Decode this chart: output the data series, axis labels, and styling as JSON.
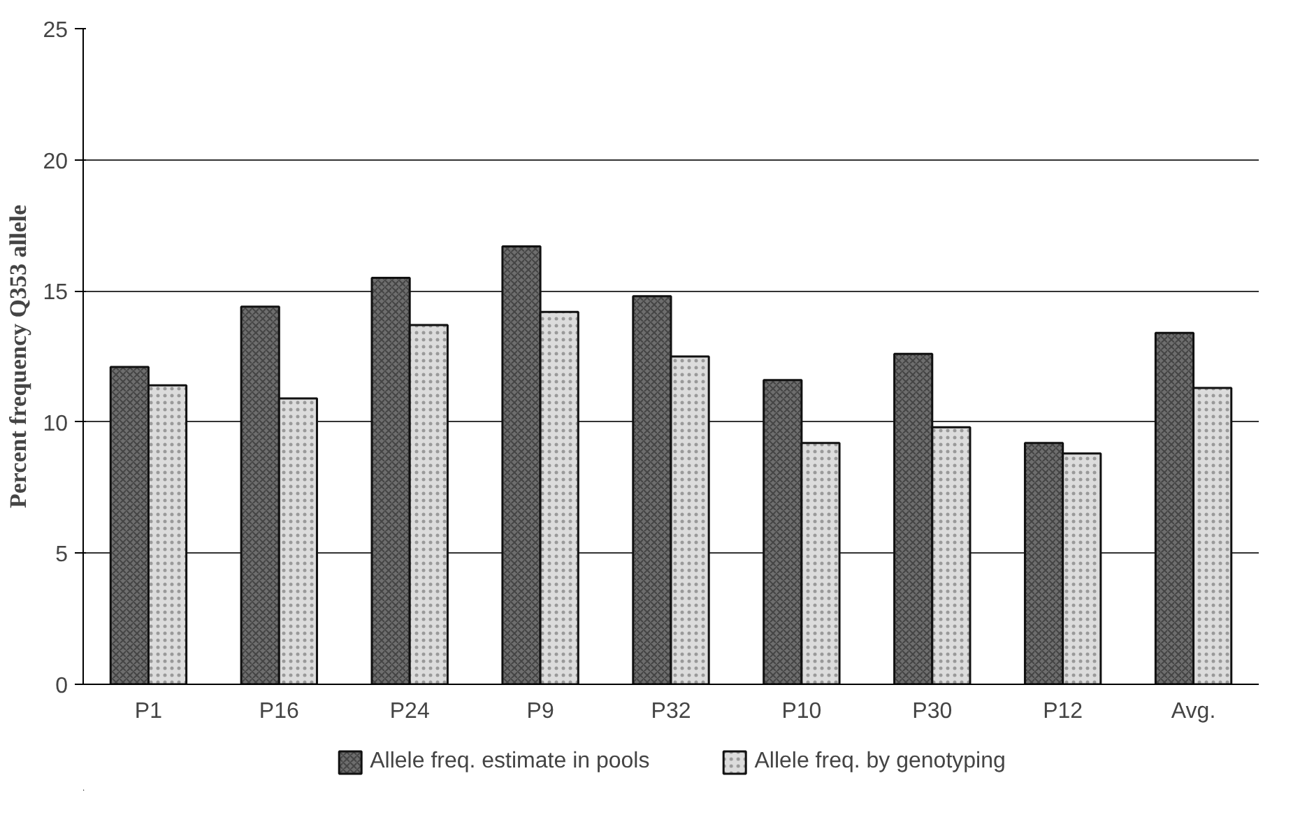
{
  "chart_data": {
    "type": "bar",
    "ylabel": "Percent frequency Q353 allele",
    "categories": [
      "P1",
      "P16",
      "P24",
      "P9",
      "P32",
      "P10",
      "P30",
      "P12",
      "Avg."
    ],
    "series": [
      {
        "name": "Allele freq. estimate in pools",
        "color": "#6e6e6e",
        "values": [
          12.1,
          14.4,
          15.5,
          16.7,
          14.8,
          11.6,
          12.6,
          9.2,
          13.4
        ]
      },
      {
        "name": "Allele freq. by genotyping",
        "color": "#dcdcdc",
        "values": [
          11.4,
          10.9,
          13.7,
          14.2,
          12.5,
          9.2,
          9.8,
          8.8,
          11.3
        ]
      }
    ],
    "ylim": [
      0,
      25
    ],
    "yticks": [
      0,
      5,
      10,
      15,
      20,
      25
    ],
    "grid": "y",
    "legend": "bottom"
  }
}
